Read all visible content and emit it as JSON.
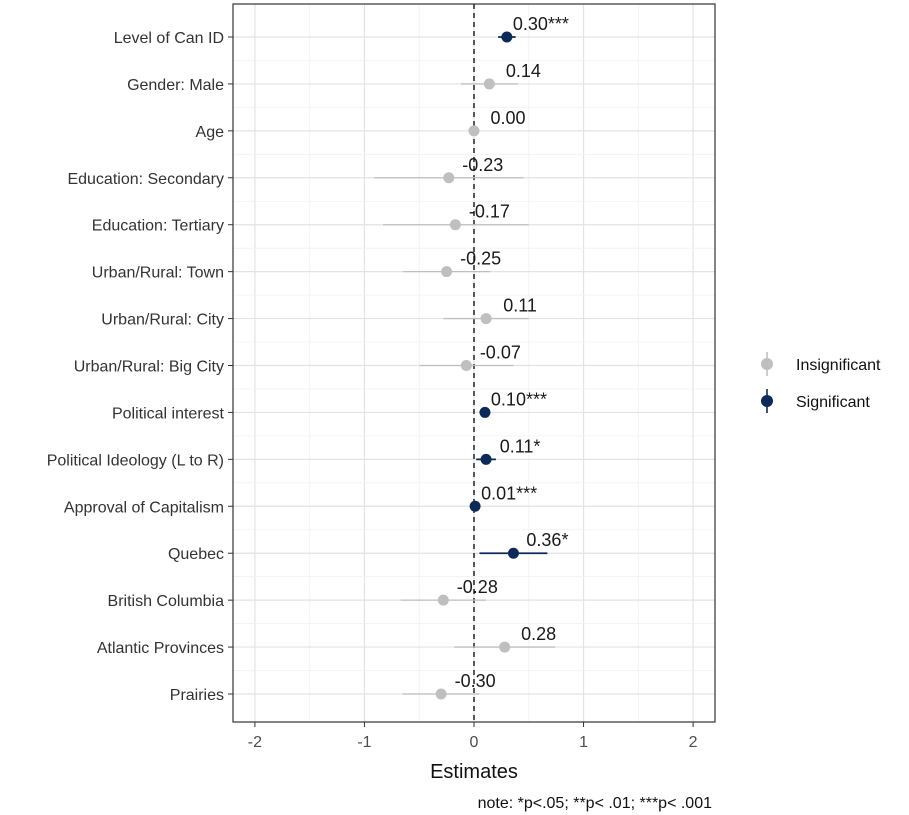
{
  "chart_data": {
    "type": "scatter",
    "subtype": "coefficient-plot",
    "title": "",
    "xlabel": "Estimates",
    "ylabel": "",
    "xlim": [
      -2.2,
      2.2
    ],
    "x_ticks": [
      "-2",
      "-1",
      "0",
      "1",
      "2"
    ],
    "grid": true,
    "legend_position": "right",
    "legend": [
      {
        "name": "Insignificant",
        "color": "#bfbfbf"
      },
      {
        "name": "Significant",
        "color": "#0c2a57"
      }
    ],
    "note": "note: *p<.05; **p< .01; ***p< .001",
    "terms": [
      {
        "term": "Level of Can ID",
        "estimate": 0.3,
        "low": 0.22,
        "high": 0.38,
        "label": "0.30***",
        "significant": true
      },
      {
        "term": "Gender: Male",
        "estimate": 0.14,
        "low": -0.12,
        "high": 0.4,
        "label": "0.14",
        "significant": false
      },
      {
        "term": "Age",
        "estimate": 0.0,
        "low": -0.02,
        "high": 0.02,
        "label": "0.00",
        "significant": false
      },
      {
        "term": "Education: Secondary",
        "estimate": -0.23,
        "low": -0.91,
        "high": 0.45,
        "label": "-0.23",
        "significant": false
      },
      {
        "term": "Education: Tertiary",
        "estimate": -0.17,
        "low": -0.83,
        "high": 0.5,
        "label": "-0.17",
        "significant": false
      },
      {
        "term": "Urban/Rural: Town",
        "estimate": -0.25,
        "low": -0.65,
        "high": 0.15,
        "label": "-0.25",
        "significant": false
      },
      {
        "term": "Urban/Rural: City",
        "estimate": 0.11,
        "low": -0.28,
        "high": 0.5,
        "label": "0.11",
        "significant": false
      },
      {
        "term": "Urban/Rural: Big City",
        "estimate": -0.07,
        "low": -0.5,
        "high": 0.36,
        "label": "-0.07",
        "significant": false
      },
      {
        "term": "Political interest",
        "estimate": 0.1,
        "low": 0.06,
        "high": 0.14,
        "label": "0.10***",
        "significant": true
      },
      {
        "term": "Political Ideology (L to R)",
        "estimate": 0.11,
        "low": 0.02,
        "high": 0.2,
        "label": "0.11*",
        "significant": true
      },
      {
        "term": "Approval of Capitalism",
        "estimate": 0.01,
        "low": 0.005,
        "high": 0.015,
        "label": "0.01***",
        "significant": true
      },
      {
        "term": "Quebec",
        "estimate": 0.36,
        "low": 0.05,
        "high": 0.67,
        "label": "0.36*",
        "significant": true
      },
      {
        "term": "British Columbia",
        "estimate": -0.28,
        "low": -0.67,
        "high": 0.11,
        "label": "-0.28",
        "significant": false
      },
      {
        "term": "Atlantic Provinces",
        "estimate": 0.28,
        "low": -0.18,
        "high": 0.74,
        "label": "0.28",
        "significant": false
      },
      {
        "term": "Prairies",
        "estimate": -0.3,
        "low": -0.65,
        "high": 0.05,
        "label": "-0.30",
        "significant": false
      }
    ]
  }
}
